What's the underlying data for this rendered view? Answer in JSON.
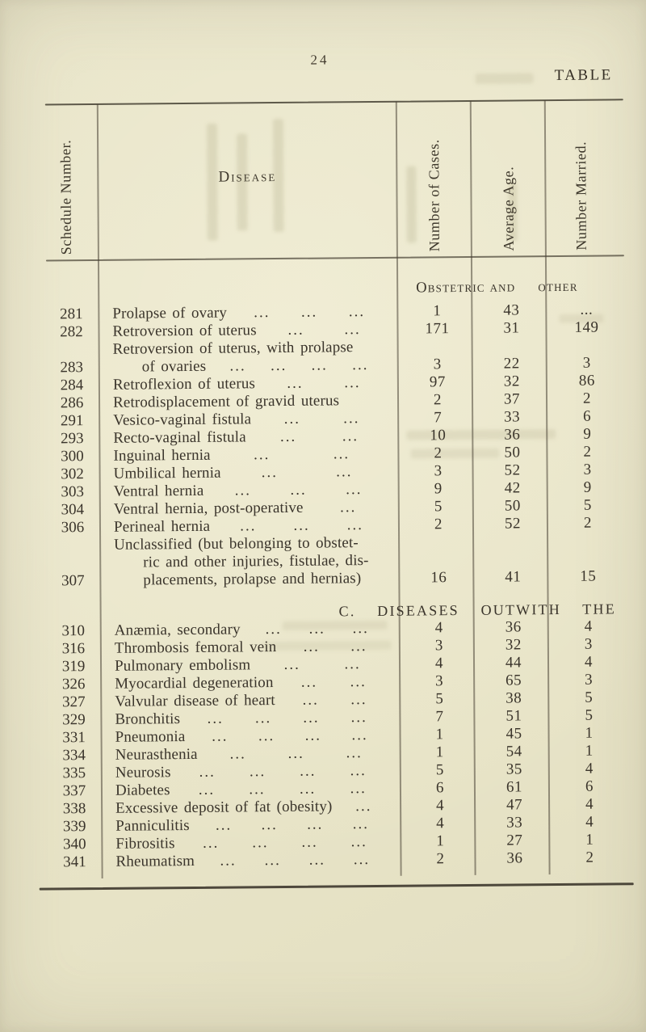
{
  "page": {
    "number": "24",
    "table_label": "TABLE"
  },
  "colors": {
    "paper": "#e9e5c9",
    "ink": "#3a342b",
    "rule": "#46402f"
  },
  "table": {
    "headers": {
      "schedule": "Schedule Number.",
      "disease": "Disease",
      "cases": "Number of Cases.",
      "age": "Average Age.",
      "married": "Number Married."
    },
    "sections": [
      {
        "heading": {
          "segments": [
            "Obstetric and",
            "other"
          ],
          "style": "small-caps"
        },
        "rows": [
          {
            "no": "281",
            "disease": [
              "Prolapse of ovary"
            ],
            "dots": 3,
            "cases": "1",
            "age": "43",
            "married": "..."
          },
          {
            "no": "282",
            "disease": [
              "Retroversion of uterus"
            ],
            "dots": 2,
            "cases": "171",
            "age": "31",
            "married": "149"
          },
          {
            "no": "283",
            "disease": [
              "Retroversion of uterus, with prolapse",
              "of ovaries"
            ],
            "dots": 4,
            "cases": "3",
            "age": "22",
            "married": "3"
          },
          {
            "no": "284",
            "disease": [
              "Retroflexion of uterus"
            ],
            "dots": 2,
            "cases": "97",
            "age": "32",
            "married": "86"
          },
          {
            "no": "286",
            "disease": [
              "Retrodisplacement of gravid uterus"
            ],
            "dots": 0,
            "cases": "2",
            "age": "37",
            "married": "2"
          },
          {
            "no": "291",
            "disease": [
              "Vesico-vaginal fistula"
            ],
            "dots": 2,
            "cases": "7",
            "age": "33",
            "married": "6"
          },
          {
            "no": "293",
            "disease": [
              "Recto-vaginal fistula"
            ],
            "dots": 2,
            "cases": "10",
            "age": "36",
            "married": "9"
          },
          {
            "no": "300",
            "disease": [
              "Inguinal hernia"
            ],
            "dots": 2,
            "cases": "2",
            "age": "50",
            "married": "2"
          },
          {
            "no": "302",
            "disease": [
              "Umbilical hernia"
            ],
            "dots": 2,
            "cases": "3",
            "age": "52",
            "married": "3"
          },
          {
            "no": "303",
            "disease": [
              "Ventral hernia"
            ],
            "dots": 3,
            "cases": "9",
            "age": "42",
            "married": "9"
          },
          {
            "no": "304",
            "disease": [
              "Ventral hernia, post-operative"
            ],
            "dots": 1,
            "cases": "5",
            "age": "50",
            "married": "5"
          },
          {
            "no": "306",
            "disease": [
              "Perineal hernia"
            ],
            "dots": 3,
            "cases": "2",
            "age": "52",
            "married": "2"
          },
          {
            "no": "307",
            "disease": [
              "Unclassified (but belonging to obstet-",
              "ric and other injuries, fistulae, dis-",
              "placements, prolapse and hernias)"
            ],
            "dots": 0,
            "cases": "16",
            "age": "41",
            "married": "15"
          }
        ]
      },
      {
        "heading": {
          "segments": [
            "C. DISEASES OUTWITH THE"
          ],
          "style": "caps"
        },
        "rows": [
          {
            "no": "310",
            "disease": [
              "Anæmia, secondary"
            ],
            "dots": 3,
            "cases": "4",
            "age": "36",
            "married": "4"
          },
          {
            "no": "316",
            "disease": [
              "Thrombosis femoral vein"
            ],
            "dots": 2,
            "cases": "3",
            "age": "32",
            "married": "3"
          },
          {
            "no": "319",
            "disease": [
              "Pulmonary embolism"
            ],
            "dots": 2,
            "cases": "4",
            "age": "44",
            "married": "4"
          },
          {
            "no": "326",
            "disease": [
              "Myocardial degeneration"
            ],
            "dots": 2,
            "cases": "3",
            "age": "65",
            "married": "3"
          },
          {
            "no": "327",
            "disease": [
              "Valvular disease of heart"
            ],
            "dots": 2,
            "cases": "5",
            "age": "38",
            "married": "5"
          },
          {
            "no": "329",
            "disease": [
              "Bronchitis"
            ],
            "dots": 4,
            "cases": "7",
            "age": "51",
            "married": "5"
          },
          {
            "no": "331",
            "disease": [
              "Pneumonia"
            ],
            "dots": 4,
            "cases": "1",
            "age": "45",
            "married": "1"
          },
          {
            "no": "334",
            "disease": [
              "Neurasthenia"
            ],
            "dots": 3,
            "cases": "1",
            "age": "54",
            "married": "1"
          },
          {
            "no": "335",
            "disease": [
              "Neurosis"
            ],
            "dots": 4,
            "cases": "5",
            "age": "35",
            "married": "4"
          },
          {
            "no": "337",
            "disease": [
              "Diabetes"
            ],
            "dots": 4,
            "cases": "6",
            "age": "61",
            "married": "6"
          },
          {
            "no": "338",
            "disease": [
              "Excessive deposit of fat (obesity)"
            ],
            "dots": 1,
            "cases": "4",
            "age": "47",
            "married": "4"
          },
          {
            "no": "339",
            "disease": [
              "Panniculitis"
            ],
            "dots": 4,
            "cases": "4",
            "age": "33",
            "married": "4"
          },
          {
            "no": "340",
            "disease": [
              "Fibrositis"
            ],
            "dots": 4,
            "cases": "1",
            "age": "27",
            "married": "1"
          },
          {
            "no": "341",
            "disease": [
              "Rheumatism"
            ],
            "dots": 4,
            "cases": "2",
            "age": "36",
            "married": "2"
          }
        ]
      }
    ]
  }
}
